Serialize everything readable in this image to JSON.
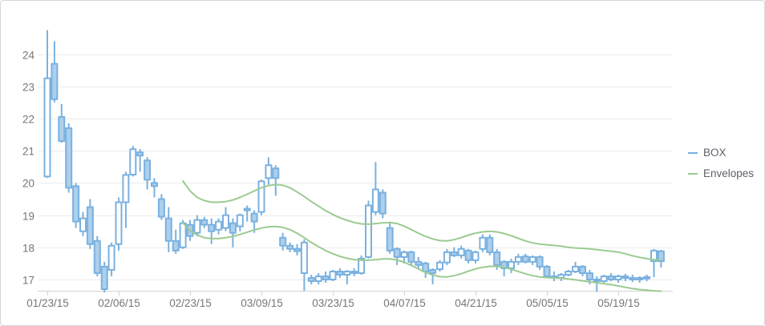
{
  "legend": {
    "items": [
      {
        "label": "BOX",
        "color": "#7ab1e0"
      },
      {
        "label": "Envelopes",
        "color": "#9bcb90"
      }
    ]
  },
  "theme": {
    "candle_stroke": "#7ab1e0",
    "candle_fill_bearish": "#accfec",
    "candle_fill_bullish": "#ffffff",
    "envelope_color": "#9bcb90",
    "grid_color": "#ececec",
    "axis_color": "#d3d3d3",
    "label_color": "#767676",
    "background": "#ffffff"
  },
  "chart_data": {
    "type": "candlestick",
    "title": "",
    "xlabel": "",
    "ylabel": "",
    "grid": true,
    "legend_position": "right",
    "ylim": [
      16.6,
      25.1
    ],
    "y_ticks": [
      17,
      18,
      19,
      20,
      21,
      22,
      23,
      24
    ],
    "x_ticks": [
      {
        "label": "01/23/15",
        "index": 0
      },
      {
        "label": "02/06/15",
        "index": 10
      },
      {
        "label": "02/23/15",
        "index": 20
      },
      {
        "label": "03/09/15",
        "index": 30
      },
      {
        "label": "03/23/15",
        "index": 40
      },
      {
        "label": "04/07/15",
        "index": 50
      },
      {
        "label": "04/21/15",
        "index": 60
      },
      {
        "label": "05/05/15",
        "index": 70
      },
      {
        "label": "05/19/15",
        "index": 80
      }
    ],
    "series": [
      {
        "name": "BOX",
        "type": "candlestick",
        "columns": [
          "date",
          "open",
          "high",
          "low",
          "close"
        ],
        "data": [
          [
            "01/23/15",
            20.2,
            24.75,
            20.16,
            23.25
          ],
          [
            "01/26/15",
            23.7,
            24.4,
            22.5,
            22.6
          ],
          [
            "01/27/15",
            22.05,
            22.45,
            21.25,
            21.3
          ],
          [
            "01/28/15",
            21.7,
            21.85,
            19.7,
            19.85
          ],
          [
            "01/29/15",
            19.9,
            20.0,
            18.6,
            18.8
          ],
          [
            "01/30/15",
            18.5,
            19.1,
            18.35,
            18.9
          ],
          [
            "02/02/15",
            19.25,
            19.5,
            17.95,
            18.1
          ],
          [
            "02/03/15",
            18.2,
            18.35,
            17.1,
            17.2
          ],
          [
            "02/04/15",
            17.4,
            17.55,
            16.6,
            16.7
          ],
          [
            "02/05/15",
            17.3,
            18.15,
            17.1,
            18.05
          ],
          [
            "02/06/15",
            18.1,
            19.55,
            17.9,
            19.4
          ],
          [
            "02/09/15",
            19.4,
            20.35,
            18.6,
            20.25
          ],
          [
            "02/10/15",
            20.26,
            21.15,
            20.2,
            21.05
          ],
          [
            "02/11/15",
            20.95,
            21.05,
            20.35,
            20.85
          ],
          [
            "02/12/15",
            20.7,
            20.8,
            19.8,
            20.1
          ],
          [
            "02/13/15",
            20.0,
            20.15,
            19.55,
            19.9
          ],
          [
            "02/17/15",
            19.5,
            19.65,
            18.85,
            18.95
          ],
          [
            "02/18/15",
            18.9,
            19.25,
            17.85,
            18.2
          ],
          [
            "02/19/15",
            18.2,
            18.55,
            17.8,
            17.9
          ],
          [
            "02/20/15",
            18.0,
            18.85,
            17.95,
            18.75
          ],
          [
            "02/23/15",
            18.7,
            18.85,
            18.2,
            18.35
          ],
          [
            "02/24/15",
            18.45,
            19.0,
            18.35,
            18.85
          ],
          [
            "02/25/15",
            18.85,
            18.95,
            18.6,
            18.7
          ],
          [
            "02/26/15",
            18.7,
            18.9,
            18.1,
            18.5
          ],
          [
            "02/27/15",
            18.55,
            18.9,
            18.4,
            18.8
          ],
          [
            "03/02/15",
            18.6,
            19.25,
            18.5,
            19.0
          ],
          [
            "03/03/15",
            18.75,
            18.9,
            18.0,
            18.45
          ],
          [
            "03/04/15",
            18.65,
            19.05,
            18.5,
            19.0
          ],
          [
            "03/05/15",
            19.15,
            19.3,
            18.8,
            19.2
          ],
          [
            "03/06/15",
            19.05,
            19.15,
            18.45,
            18.8
          ],
          [
            "03/09/15",
            19.1,
            20.1,
            19.0,
            20.05
          ],
          [
            "03/10/15",
            20.15,
            20.8,
            19.95,
            20.55
          ],
          [
            "03/11/15",
            20.45,
            20.55,
            19.6,
            20.15
          ],
          [
            "03/12/15",
            18.3,
            18.45,
            17.9,
            18.05
          ],
          [
            "03/13/15",
            18.05,
            18.15,
            17.85,
            17.95
          ],
          [
            "03/16/15",
            17.95,
            18.1,
            17.75,
            17.88
          ],
          [
            "03/17/15",
            17.2,
            18.25,
            16.65,
            18.15
          ],
          [
            "03/18/15",
            17.05,
            17.15,
            16.85,
            16.95
          ],
          [
            "03/19/15",
            16.95,
            17.2,
            16.85,
            17.1
          ],
          [
            "03/20/15",
            17.1,
            17.25,
            16.9,
            17.0
          ],
          [
            "03/23/15",
            17.0,
            17.3,
            16.95,
            17.25
          ],
          [
            "03/24/15",
            17.25,
            17.35,
            17.05,
            17.15
          ],
          [
            "03/25/15",
            17.15,
            17.3,
            16.85,
            17.25
          ],
          [
            "03/26/15",
            17.25,
            17.35,
            17.1,
            17.2
          ],
          [
            "03/27/15",
            17.2,
            17.75,
            17.15,
            17.65
          ],
          [
            "03/30/15",
            17.7,
            19.45,
            17.65,
            19.3
          ],
          [
            "03/31/15",
            19.1,
            20.65,
            19.0,
            19.8
          ],
          [
            "04/01/15",
            19.7,
            19.8,
            18.9,
            19.05
          ],
          [
            "04/02/15",
            18.6,
            18.75,
            17.8,
            17.9
          ],
          [
            "04/06/15",
            17.95,
            18.0,
            17.45,
            17.7
          ],
          [
            "04/07/15",
            17.7,
            17.9,
            17.5,
            17.85
          ],
          [
            "04/08/15",
            17.85,
            17.9,
            17.45,
            17.55
          ],
          [
            "04/09/15",
            17.55,
            17.7,
            17.35,
            17.45
          ],
          [
            "04/10/15",
            17.5,
            17.55,
            17.05,
            17.25
          ],
          [
            "04/13/15",
            17.3,
            17.35,
            16.85,
            17.2
          ],
          [
            "04/14/15",
            17.32,
            17.6,
            17.25,
            17.53
          ],
          [
            "04/15/15",
            17.53,
            17.95,
            17.45,
            17.85
          ],
          [
            "04/16/15",
            17.85,
            18.0,
            17.7,
            17.75
          ],
          [
            "04/17/15",
            17.75,
            18.05,
            17.65,
            17.95
          ],
          [
            "04/20/15",
            17.9,
            17.95,
            17.5,
            17.6
          ],
          [
            "04/21/15",
            17.6,
            17.9,
            17.5,
            17.85
          ],
          [
            "04/22/15",
            17.95,
            18.4,
            17.85,
            18.3
          ],
          [
            "04/23/15",
            18.3,
            18.4,
            17.75,
            17.85
          ],
          [
            "04/24/15",
            17.85,
            17.95,
            17.3,
            17.45
          ],
          [
            "04/27/15",
            17.55,
            17.6,
            17.1,
            17.35
          ],
          [
            "04/28/15",
            17.35,
            17.65,
            17.2,
            17.55
          ],
          [
            "04/29/15",
            17.55,
            17.8,
            17.45,
            17.7
          ],
          [
            "04/30/15",
            17.72,
            17.8,
            17.5,
            17.55
          ],
          [
            "05/01/15",
            17.55,
            17.75,
            17.45,
            17.7
          ],
          [
            "05/04/15",
            17.7,
            17.75,
            17.3,
            17.4
          ],
          [
            "05/05/15",
            17.4,
            17.45,
            17.05,
            17.1
          ],
          [
            "05/06/15",
            17.1,
            17.25,
            16.95,
            17.05
          ],
          [
            "05/07/15",
            17.05,
            17.2,
            16.95,
            17.15
          ],
          [
            "05/08/15",
            17.15,
            17.3,
            17.1,
            17.25
          ],
          [
            "05/11/15",
            17.25,
            17.55,
            17.2,
            17.4
          ],
          [
            "05/12/15",
            17.4,
            17.45,
            17.1,
            17.2
          ],
          [
            "05/13/15",
            17.2,
            17.3,
            16.85,
            17.0
          ],
          [
            "05/14/15",
            17.0,
            17.1,
            16.62,
            16.95
          ],
          [
            "05/15/15",
            16.95,
            17.15,
            16.9,
            17.1
          ],
          [
            "05/18/15",
            17.1,
            17.2,
            16.95,
            17.0
          ],
          [
            "05/19/15",
            17.0,
            17.15,
            16.9,
            17.1
          ],
          [
            "05/20/15",
            17.1,
            17.18,
            16.95,
            17.05
          ],
          [
            "05/21/15",
            17.05,
            17.15,
            16.92,
            17.0
          ],
          [
            "05/22/15",
            17.0,
            17.1,
            16.9,
            17.05
          ],
          [
            "05/26/15",
            17.05,
            17.15,
            16.95,
            17.08
          ],
          [
            "05/27/15",
            17.57,
            17.95,
            17.07,
            17.9
          ],
          [
            "05/28/15",
            17.88,
            17.92,
            17.37,
            17.57
          ]
        ]
      },
      {
        "name": "Envelopes",
        "type": "line",
        "start_index": 19,
        "upper": [
          20.06,
          19.75,
          19.55,
          19.45,
          19.4,
          19.4,
          19.42,
          19.47,
          19.55,
          19.65,
          19.75,
          19.85,
          19.92,
          19.95,
          19.93,
          19.85,
          19.72,
          19.58,
          19.42,
          19.28,
          19.14,
          19.02,
          18.92,
          18.84,
          18.77,
          18.73,
          18.72,
          18.74,
          18.76,
          18.77,
          18.74,
          18.66,
          18.55,
          18.44,
          18.34,
          18.26,
          18.21,
          18.2,
          18.24,
          18.3,
          18.38,
          18.44,
          18.48,
          18.5,
          18.48,
          18.43,
          18.36,
          18.28,
          18.2,
          18.14,
          18.1,
          18.08,
          18.06,
          18.04,
          18.0,
          17.98,
          17.97,
          17.95,
          17.93,
          17.9,
          17.88,
          17.85,
          17.8,
          17.74,
          17.69,
          17.65,
          17.62,
          17.61
        ],
        "lower": [
          18.76,
          18.52,
          18.38,
          18.3,
          18.27,
          18.27,
          18.3,
          18.34,
          18.4,
          18.47,
          18.54,
          18.6,
          18.64,
          18.65,
          18.62,
          18.55,
          18.44,
          18.3,
          18.15,
          18.02,
          17.9,
          17.8,
          17.72,
          17.66,
          17.62,
          17.6,
          17.6,
          17.62,
          17.64,
          17.64,
          17.61,
          17.54,
          17.44,
          17.33,
          17.22,
          17.14,
          17.09,
          17.08,
          17.12,
          17.18,
          17.26,
          17.33,
          17.38,
          17.41,
          17.41,
          17.38,
          17.32,
          17.25,
          17.18,
          17.12,
          17.08,
          17.06,
          17.05,
          17.04,
          17.02,
          16.99,
          16.96,
          16.93,
          16.9,
          16.87,
          16.84,
          16.8,
          16.76,
          16.72,
          16.69,
          16.67,
          16.65,
          16.64
        ]
      }
    ]
  }
}
